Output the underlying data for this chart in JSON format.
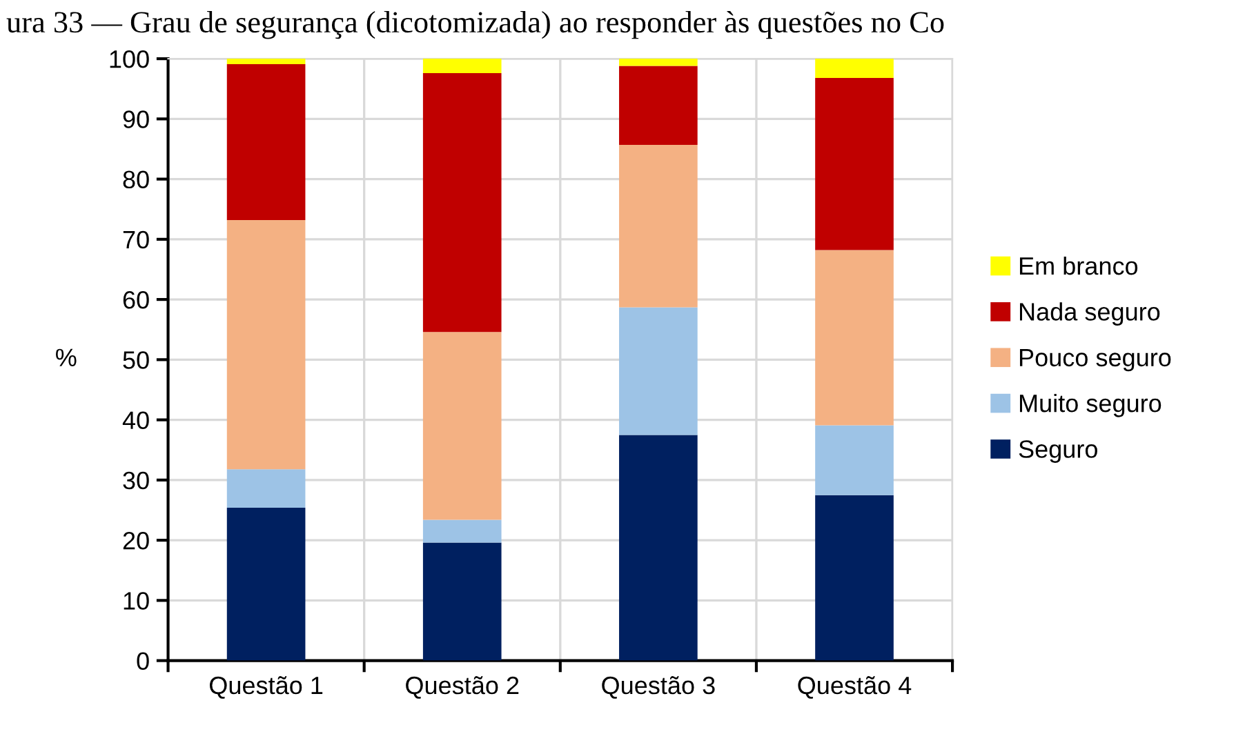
{
  "chart_data": {
    "type": "bar",
    "stacked": true,
    "title": "ura 33 — Grau de segurança (dicotomizada) ao responder às questões no Co",
    "ylabel": "%",
    "categories": [
      "Questão 1",
      "Questão 2",
      "Questão 3",
      "Questão 4"
    ],
    "series": [
      {
        "name": "Seguro",
        "color": "#002060",
        "values": [
          25.4,
          19.6,
          37.5,
          27.5
        ]
      },
      {
        "name": "Muito seguro",
        "color": "#9dc3e6",
        "values": [
          6.4,
          3.8,
          21.2,
          11.6
        ]
      },
      {
        "name": "Pouco seguro",
        "color": "#f4b183",
        "values": [
          41.4,
          31.2,
          27.0,
          29.1
        ]
      },
      {
        "name": "Nada seguro",
        "color": "#c00000",
        "values": [
          25.9,
          43.0,
          13.1,
          28.6
        ]
      },
      {
        "name": "Em branco",
        "color": "#ffff00",
        "values": [
          0.9,
          2.4,
          1.2,
          3.2
        ]
      }
    ],
    "ylim": [
      0,
      100
    ],
    "yticks": [
      0,
      10,
      20,
      30,
      40,
      50,
      60,
      70,
      80,
      90,
      100
    ],
    "grid": true,
    "legend": "right"
  }
}
